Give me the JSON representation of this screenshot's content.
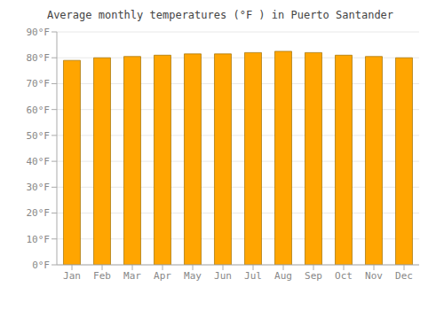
{
  "chart_data": {
    "type": "bar",
    "title": "Average monthly temperatures (°F ) in Puerto Santander",
    "categories": [
      "Jan",
      "Feb",
      "Mar",
      "Apr",
      "May",
      "Jun",
      "Jul",
      "Aug",
      "Sep",
      "Oct",
      "Nov",
      "Dec"
    ],
    "values": [
      79,
      80,
      80.5,
      81,
      81.5,
      81.5,
      82,
      82.5,
      82,
      81,
      80.5,
      80
    ],
    "color": "#FFA500",
    "ylim": [
      0,
      90
    ],
    "yticks": [
      {
        "value": 0,
        "label": "0°F"
      },
      {
        "value": 10,
        "label": "10°F"
      },
      {
        "value": 20,
        "label": "20°F"
      },
      {
        "value": 30,
        "label": "30°F"
      },
      {
        "value": 40,
        "label": "40°F"
      },
      {
        "value": 50,
        "label": "50°F"
      },
      {
        "value": 60,
        "label": "60°F"
      },
      {
        "value": 70,
        "label": "70°F"
      },
      {
        "value": 80,
        "label": "80°F"
      },
      {
        "value": 90,
        "label": "90°F"
      }
    ],
    "grid": true
  }
}
